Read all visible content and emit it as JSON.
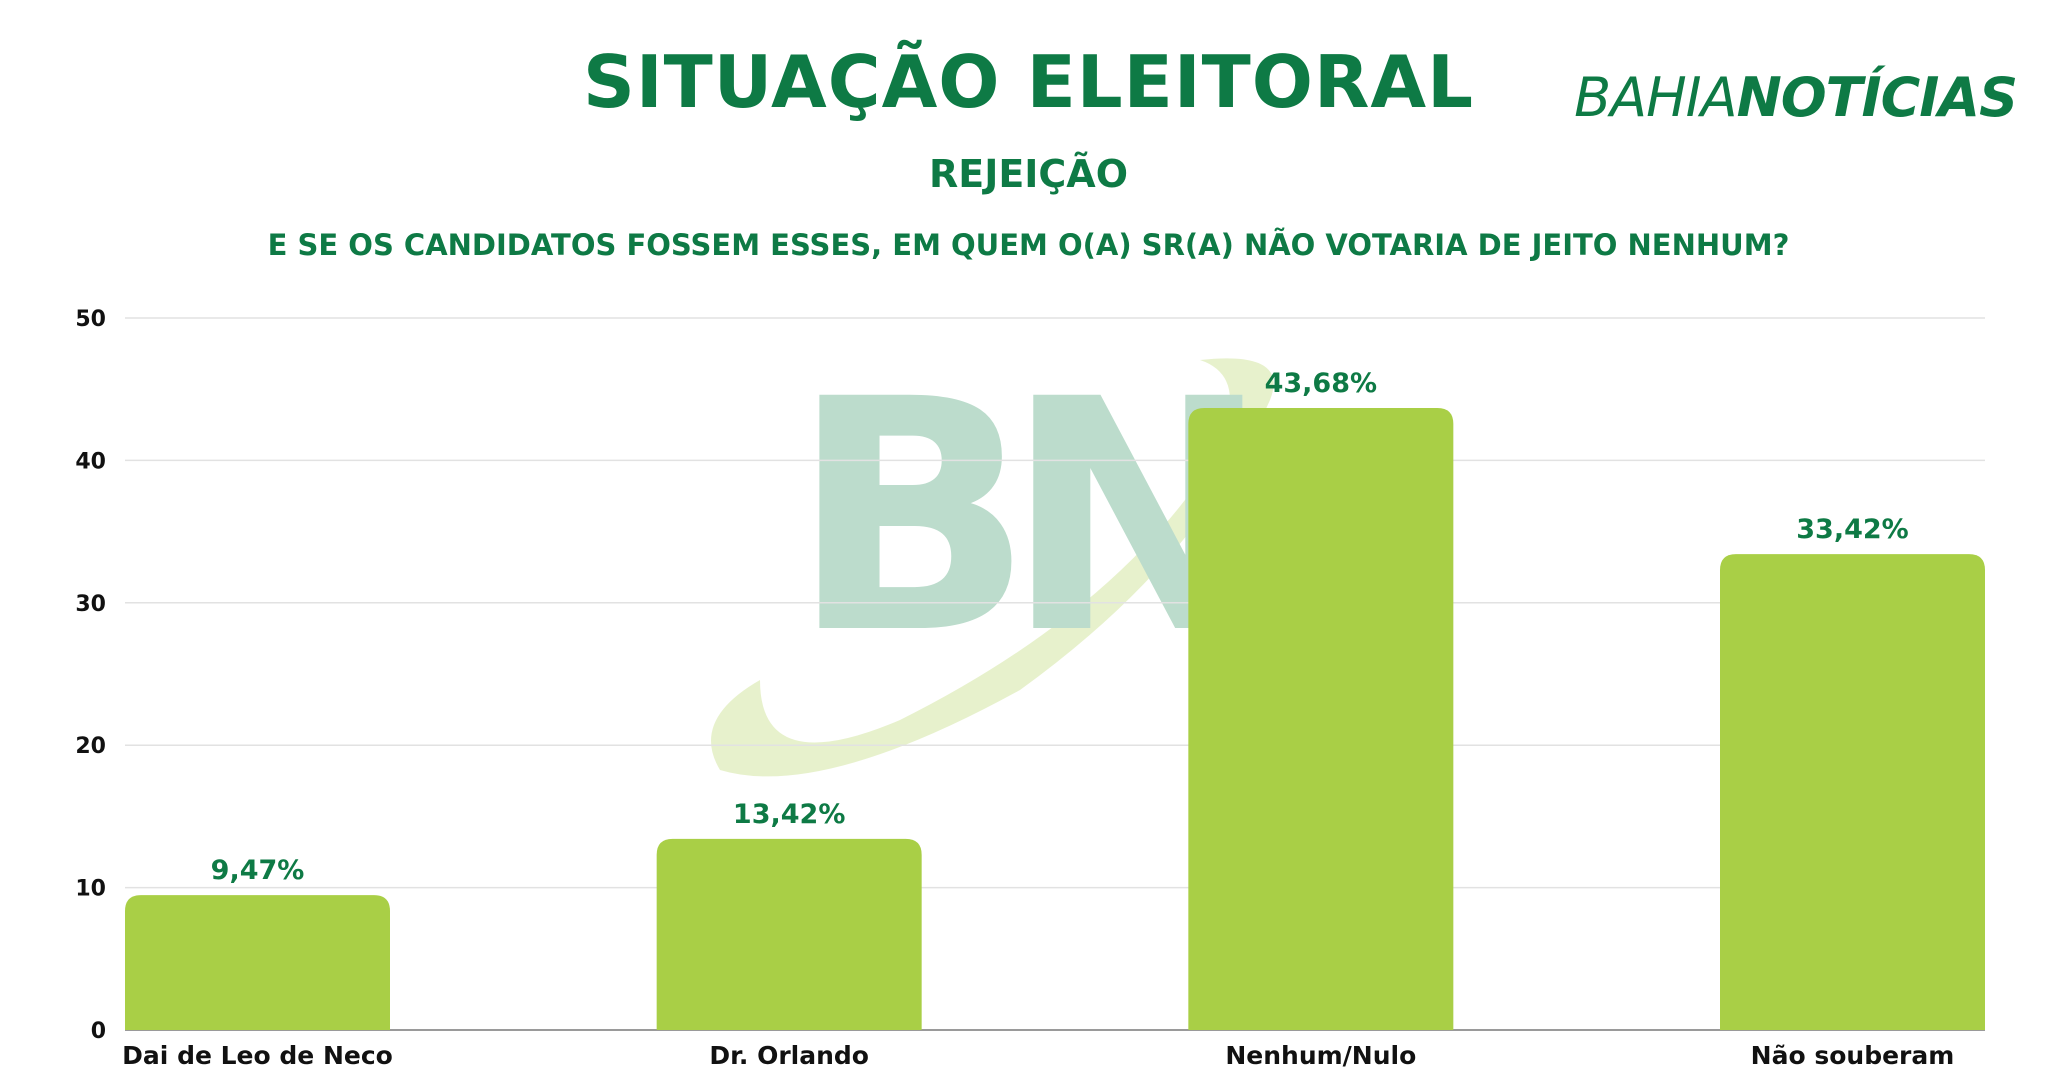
{
  "header": {
    "title": "SITUAÇÃO ELEITORAL",
    "logo_part1": "BAHIA",
    "logo_part2": "NOTÍCIAS",
    "subtitle": "REJEIÇÃO",
    "question": "E SE OS CANDIDATOS FOSSEM ESSES, EM QUEM O(A) SR(A) NÃO VOTARIA DE JEITO NENHUM?"
  },
  "watermark": {
    "text": "BN"
  },
  "colors": {
    "brand_green": "#0e7a45",
    "bar_fill": "#a9cf46",
    "grid": "#e2e2e2"
  },
  "chart_data": {
    "type": "bar",
    "title": "REJEIÇÃO",
    "categories": [
      "Dai de Leo de Neco",
      "Dr. Orlando",
      "Nenhum/Nulo",
      "Não souberam"
    ],
    "values": [
      9.47,
      13.42,
      43.68,
      33.42
    ],
    "data_labels": [
      "9,47%",
      "13,42%",
      "43,68%",
      "33,42%"
    ],
    "yticks": [
      "0",
      "10",
      "20",
      "30",
      "40",
      "50"
    ],
    "ylim": [
      0,
      50
    ],
    "grid": true,
    "legend": "none"
  }
}
